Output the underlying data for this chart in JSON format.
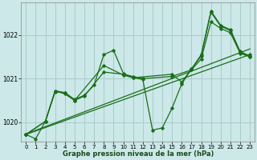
{
  "xlabel": "Graphe pression niveau de la mer (hPa)",
  "background_color": "#cce8e8",
  "grid_color": "#aacccc",
  "line_color": "#1a6e1a",
  "marker_color": "#1a6e1a",
  "ylim": [
    1019.55,
    1022.75
  ],
  "yticks": [
    1020,
    1021,
    1022
  ],
  "xlim": [
    -0.5,
    23.5
  ],
  "xticks": [
    0,
    1,
    2,
    3,
    4,
    5,
    6,
    7,
    8,
    9,
    10,
    11,
    12,
    13,
    14,
    15,
    16,
    17,
    18,
    19,
    20,
    21,
    22,
    23
  ],
  "line1_x": [
    0,
    1,
    2,
    3,
    4,
    5,
    6,
    7,
    8,
    9,
    10,
    11,
    12,
    13,
    14,
    15,
    16,
    17,
    18,
    19,
    20,
    21,
    22,
    23
  ],
  "line1_y": [
    1019.72,
    1019.62,
    1020.02,
    1020.72,
    1020.68,
    1020.52,
    1020.62,
    1020.85,
    1021.55,
    1021.65,
    1021.12,
    1021.02,
    1020.98,
    1019.82,
    1019.87,
    1020.32,
    1020.88,
    1021.22,
    1021.55,
    1022.55,
    1022.22,
    1022.12,
    1021.62,
    1021.52
  ],
  "line2_x": [
    0,
    2,
    3,
    4,
    5,
    6,
    8,
    10,
    11,
    12,
    15,
    17,
    18,
    19,
    20,
    21,
    22,
    23
  ],
  "line2_y": [
    1019.72,
    1020.02,
    1020.72,
    1020.65,
    1020.5,
    1020.6,
    1021.15,
    1021.1,
    1021.05,
    1021.0,
    1021.05,
    1021.2,
    1021.45,
    1022.3,
    1022.15,
    1022.05,
    1021.58,
    1021.5
  ],
  "line3_x": [
    0,
    2,
    3,
    4,
    5,
    8,
    10,
    11,
    15,
    16,
    17,
    18,
    19,
    20,
    21,
    22,
    23
  ],
  "line3_y": [
    1019.72,
    1020.02,
    1020.7,
    1020.67,
    1020.5,
    1021.3,
    1021.08,
    1021.02,
    1021.1,
    1020.92,
    1021.22,
    1021.52,
    1022.52,
    1022.2,
    1022.1,
    1021.6,
    1021.5
  ],
  "line4_x": [
    0,
    23
  ],
  "line4_y": [
    1019.72,
    1021.55
  ]
}
